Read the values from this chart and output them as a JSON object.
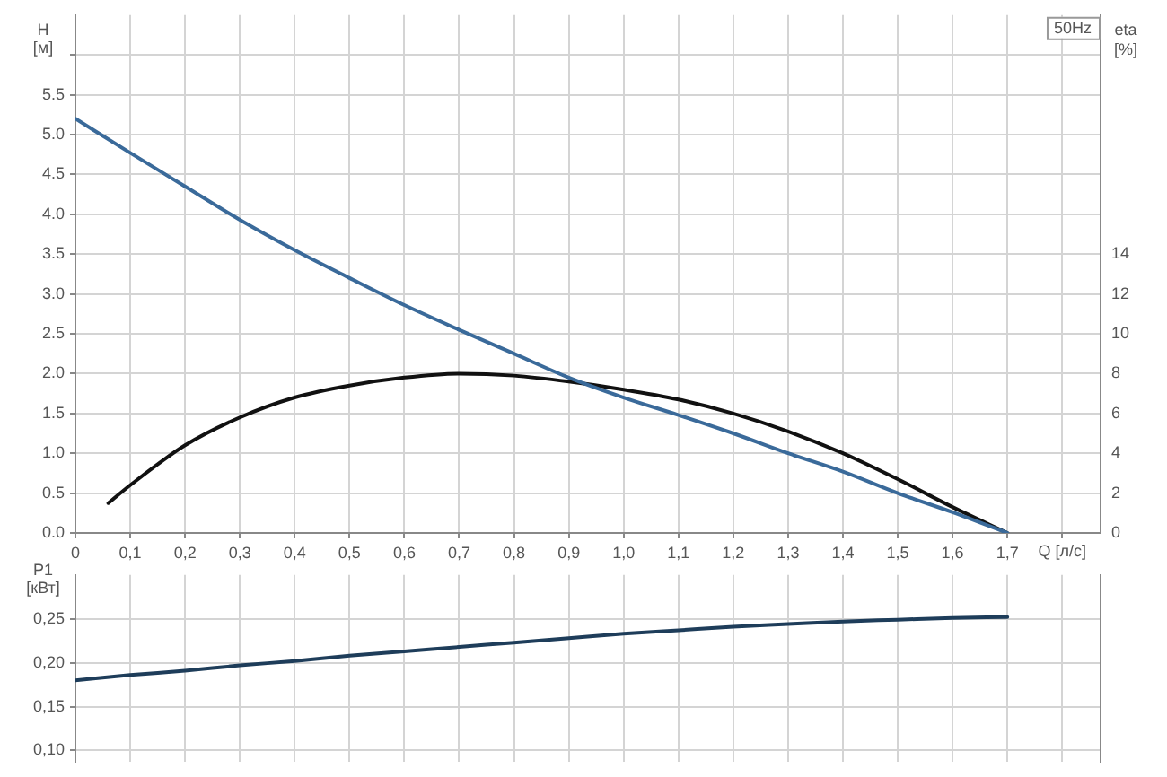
{
  "chart_data": [
    {
      "type": "line",
      "xlabel": "Q [л/с]",
      "ylabel": "H\n[м]",
      "y2label": "eta\n[%]",
      "annotations": [
        "50Hz"
      ],
      "x": [
        0,
        0.1,
        0.2,
        0.3,
        0.4,
        0.5,
        0.6,
        0.7,
        0.8,
        0.9,
        1.0,
        1.1,
        1.2,
        1.3,
        1.4,
        1.5,
        1.6,
        1.7
      ],
      "series": [
        {
          "color": "#3a6a9a",
          "values": [
            5.2,
            4.77,
            4.35,
            3.93,
            3.55,
            3.2,
            2.86,
            2.55,
            2.25,
            1.95,
            1.7,
            1.48,
            1.25,
            1.0,
            0.77,
            0.5,
            0.26,
            0
          ]
        },
        {
          "color": "#111111",
          "axis": "y2",
          "x": [
            0.06,
            0.1,
            0.2,
            0.3,
            0.4,
            0.5,
            0.6,
            0.7,
            0.8,
            0.9,
            1.0,
            1.1,
            1.2,
            1.3,
            1.4,
            1.5,
            1.6,
            1.7
          ],
          "values": [
            1.5,
            2.4,
            4.4,
            5.8,
            6.8,
            7.4,
            7.8,
            8.0,
            7.9,
            7.6,
            7.2,
            6.7,
            6.0,
            5.1,
            4.0,
            2.7,
            1.3,
            0
          ]
        }
      ],
      "xlim": [
        0,
        1.87
      ],
      "xticks": [
        {
          "value": 0,
          "label": "0"
        },
        {
          "value": 0.1,
          "label": "0,1"
        },
        {
          "value": 0.2,
          "label": "0,2"
        },
        {
          "value": 0.3,
          "label": "0,3"
        },
        {
          "value": 0.4,
          "label": "0,4"
        },
        {
          "value": 0.5,
          "label": "0,5"
        },
        {
          "value": 0.6,
          "label": "0,6"
        },
        {
          "value": 0.7,
          "label": "0,7"
        },
        {
          "value": 0.8,
          "label": "0,8"
        },
        {
          "value": 0.9,
          "label": "0,9"
        },
        {
          "value": 1.0,
          "label": "1,0"
        },
        {
          "value": 1.1,
          "label": "1,1"
        },
        {
          "value": 1.2,
          "label": "1,2"
        },
        {
          "value": 1.3,
          "label": "1,3"
        },
        {
          "value": 1.4,
          "label": "1,4"
        },
        {
          "value": 1.5,
          "label": "1,5"
        },
        {
          "value": 1.6,
          "label": "1,6"
        },
        {
          "value": 1.7,
          "label": "1,7"
        },
        {
          "value": 1.8,
          "label": null
        }
      ],
      "ylim": [
        0,
        6.5
      ],
      "yticks": [
        {
          "value": 0,
          "label": "0.0"
        },
        {
          "value": 0.5,
          "label": "0.5"
        },
        {
          "value": 1,
          "label": "1.0"
        },
        {
          "value": 1.5,
          "label": "1.5"
        },
        {
          "value": 2,
          "label": "2.0"
        },
        {
          "value": 2.5,
          "label": "2.5"
        },
        {
          "value": 3,
          "label": "3.0"
        },
        {
          "value": 3.5,
          "label": "3.5"
        },
        {
          "value": 4,
          "label": "4.0"
        },
        {
          "value": 4.5,
          "label": "4.5"
        },
        {
          "value": 5,
          "label": "5.0"
        },
        {
          "value": 5.5,
          "label": "5.5"
        },
        {
          "value": 6,
          "label": null
        }
      ],
      "y2lim": [
        0,
        26
      ],
      "y2ticks": [
        0,
        2,
        4,
        6,
        8,
        10,
        12,
        14
      ],
      "grid": true,
      "legend": false
    },
    {
      "type": "line",
      "ylabel": "P1\n[кВт]",
      "x": [
        0,
        0.1,
        0.2,
        0.3,
        0.4,
        0.5,
        0.6,
        0.7,
        0.8,
        0.9,
        1.0,
        1.1,
        1.2,
        1.3,
        1.4,
        1.5,
        1.6,
        1.7
      ],
      "series": [
        {
          "color": "#1e3d5a",
          "values": [
            0.18,
            0.186,
            0.191,
            0.197,
            0.202,
            0.208,
            0.213,
            0.218,
            0.223,
            0.228,
            0.233,
            0.237,
            0.241,
            0.244,
            0.247,
            0.249,
            0.251,
            0.252
          ]
        }
      ],
      "xlim": [
        0,
        1.87
      ],
      "xticks": [
        0,
        0.1,
        0.2,
        0.3,
        0.4,
        0.5,
        0.6,
        0.7,
        0.8,
        0.9,
        1.0,
        1.1,
        1.2,
        1.3,
        1.4,
        1.5,
        1.6,
        1.7,
        1.8
      ],
      "ylim": [
        0.087,
        0.3
      ],
      "yticks": [
        {
          "value": 0.1,
          "label": "0,10"
        },
        {
          "value": 0.15,
          "label": "0,15"
        },
        {
          "value": 0.2,
          "label": "0,20"
        },
        {
          "value": 0.25,
          "label": "0,25"
        }
      ],
      "tick_labels": "y",
      "grid": true,
      "legend": false
    }
  ]
}
